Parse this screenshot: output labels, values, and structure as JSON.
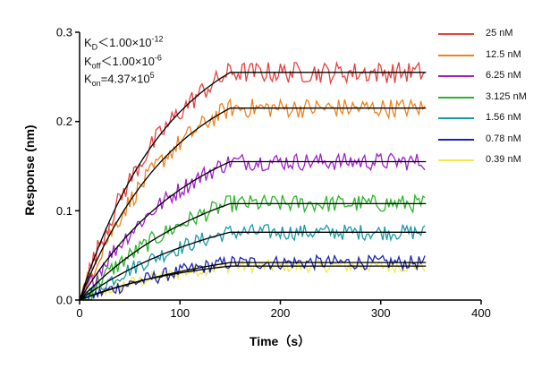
{
  "chart_data": {
    "type": "line",
    "title": "",
    "xlabel": "Time（s）",
    "ylabel": "Response (nm)",
    "xlim": [
      0,
      400
    ],
    "ylim": [
      0,
      0.3
    ],
    "xticks": [
      0,
      100,
      200,
      300,
      400
    ],
    "yticks": [
      0.0,
      0.1,
      0.2,
      0.3
    ],
    "xtick_labels": [
      "0",
      "100",
      "200",
      "300",
      "400"
    ],
    "ytick_labels": [
      "0.0",
      "0.1",
      "0.2",
      "0.3"
    ],
    "association_end": 150,
    "x_end": 345,
    "legend_position": "top-right",
    "annotations": {
      "kd_sym": "K",
      "kd_sub": "D",
      "kd_val": "＜1.00×10",
      "kd_exp": "-12",
      "koff_sym": "K",
      "koff_sub": "off",
      "koff_val": "＜1.00×10",
      "koff_exp": "-6",
      "kon_sym": "K",
      "kon_sub": "on",
      "kon_val": "=4.37×10",
      "kon_exp": "5"
    },
    "series": [
      {
        "name": "25 nM",
        "color": "#e8413e",
        "plateau": 0.255,
        "amp": 0.315,
        "noise": 0.012
      },
      {
        "name": "12.5 nM",
        "color": "#f0821e",
        "plateau": 0.215,
        "amp": 0.272,
        "noise": 0.011
      },
      {
        "name": "6.25 nM",
        "color": "#a020c8",
        "plateau": 0.155,
        "amp": 0.212,
        "noise": 0.01
      },
      {
        "name": "3.125 nM",
        "color": "#2cb52c",
        "plateau": 0.108,
        "amp": 0.162,
        "noise": 0.01
      },
      {
        "name": "1.56 nM",
        "color": "#1a9aab",
        "plateau": 0.076,
        "amp": 0.118,
        "noise": 0.009
      },
      {
        "name": "0.78 nM",
        "color": "#1c24b4",
        "plateau": 0.042,
        "amp": 0.072,
        "noise": 0.008
      },
      {
        "name": "0.39 nM",
        "color": "#f2e84a",
        "plateau": 0.038,
        "amp": 0.052,
        "noise": 0.007
      }
    ]
  }
}
